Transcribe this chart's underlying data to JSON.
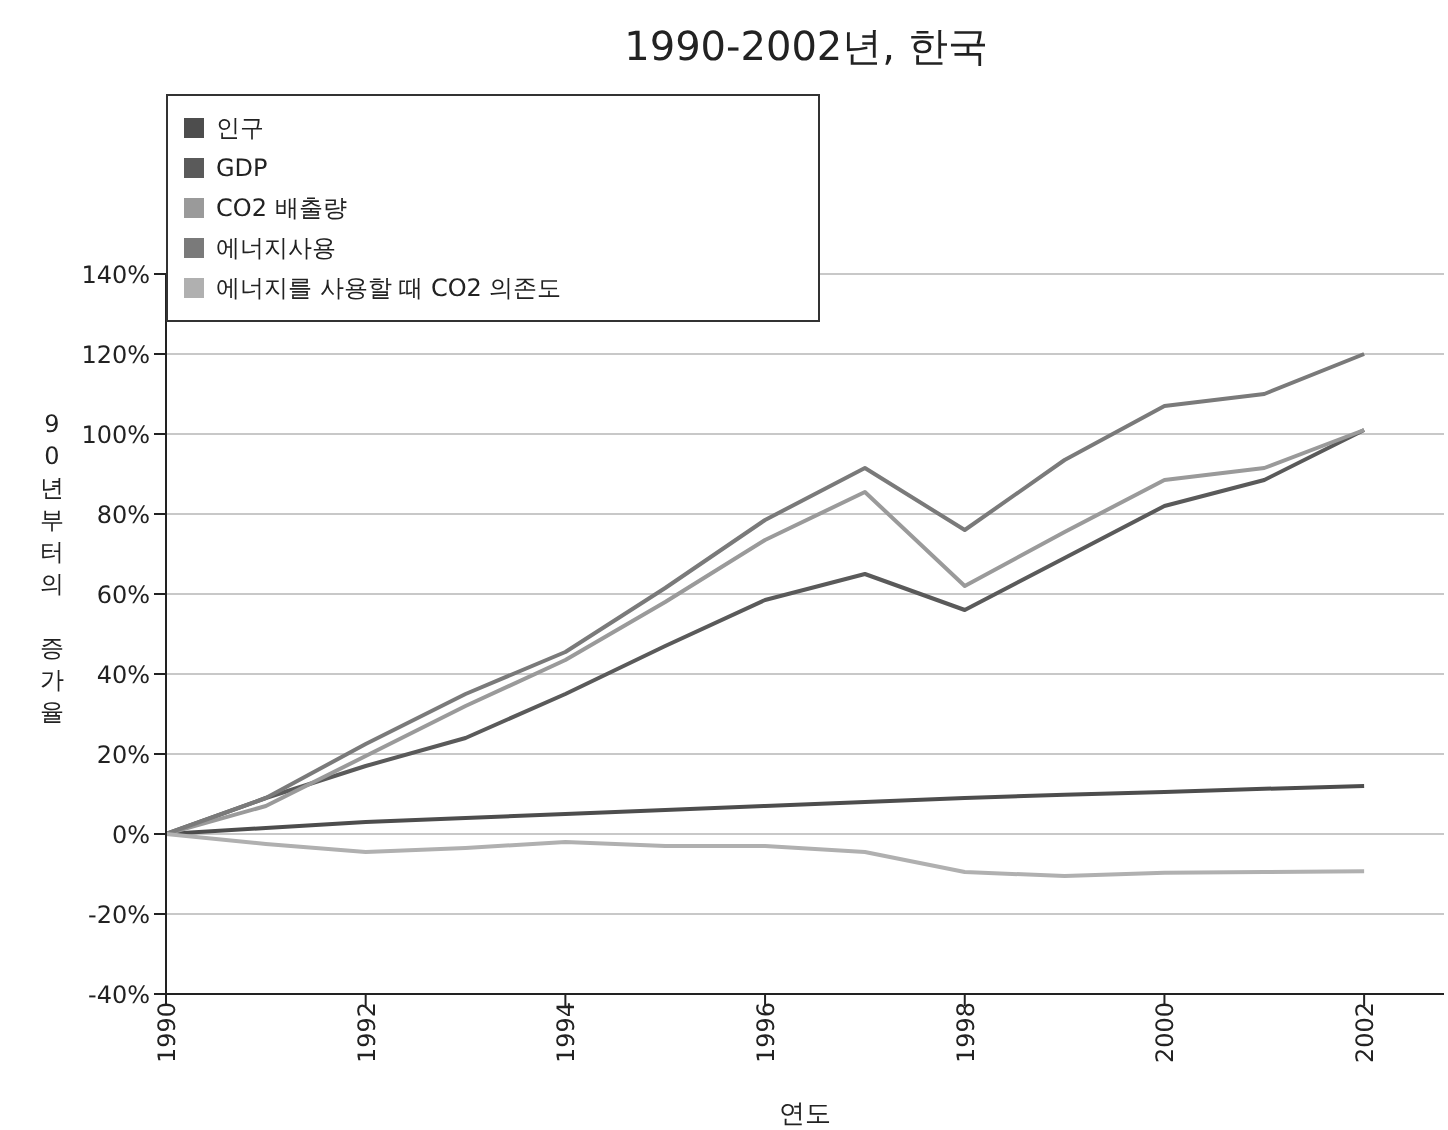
{
  "chart_data": {
    "type": "line",
    "title": "1990-2002년, 한국",
    "xlabel": "연도",
    "ylabel": "90년부터의 증가율",
    "x": [
      1990,
      1991,
      1992,
      1993,
      1994,
      1995,
      1996,
      1997,
      1998,
      1999,
      2000,
      2001,
      2002
    ],
    "series": [
      {
        "name": "인구",
        "color": "#4d4d4d",
        "values": [
          0,
          1.5,
          3,
          4,
          5,
          6,
          7,
          8,
          9,
          9.8,
          10.5,
          11.3,
          12
        ]
      },
      {
        "name": "GDP",
        "color": "#5a5a5a",
        "values": [
          0,
          9,
          17,
          24,
          35,
          47,
          58.5,
          65,
          56,
          69,
          82,
          88.5,
          101
        ]
      },
      {
        "name": "CO2 배출량",
        "color": "#9a9a9a",
        "values": [
          0,
          7,
          19.5,
          32,
          43.5,
          58,
          73.5,
          85.5,
          62,
          75.5,
          88.5,
          91.5,
          101
        ]
      },
      {
        "name": "에너지사용",
        "color": "#7a7a7a",
        "values": [
          0,
          9,
          22.5,
          35,
          45.5,
          61.5,
          78.5,
          91.5,
          76,
          93.5,
          107,
          110,
          120
        ]
      },
      {
        "name": "에너지를 사용할 때 CO2  의존도",
        "color": "#b0b0b0",
        "values": [
          0,
          -2.5,
          -4.5,
          -3.5,
          -2,
          -3,
          -3,
          -4.5,
          -9.5,
          -10.5,
          -9.7,
          -9.5,
          -9.3
        ]
      }
    ],
    "xlim": [
      1990,
      2002.8
    ],
    "xticks": [
      1990,
      1992,
      1994,
      1996,
      1998,
      2000,
      2002
    ],
    "ylim": [
      -40,
      140
    ],
    "yticks": [
      {
        "value": -40,
        "label": "-40%"
      },
      {
        "value": -20,
        "label": "-20%"
      },
      {
        "value": 0,
        "label": "0%"
      },
      {
        "value": 20,
        "label": "20%"
      },
      {
        "value": 40,
        "label": "40%"
      },
      {
        "value": 60,
        "label": "60%"
      },
      {
        "value": 80,
        "label": "80%"
      },
      {
        "value": 100,
        "label": "100%"
      },
      {
        "value": 120,
        "label": "120%"
      },
      {
        "value": 140,
        "label": "140%"
      }
    ],
    "grid": "y",
    "legend": "top left",
    "marker": "none",
    "line_style": "solid"
  }
}
